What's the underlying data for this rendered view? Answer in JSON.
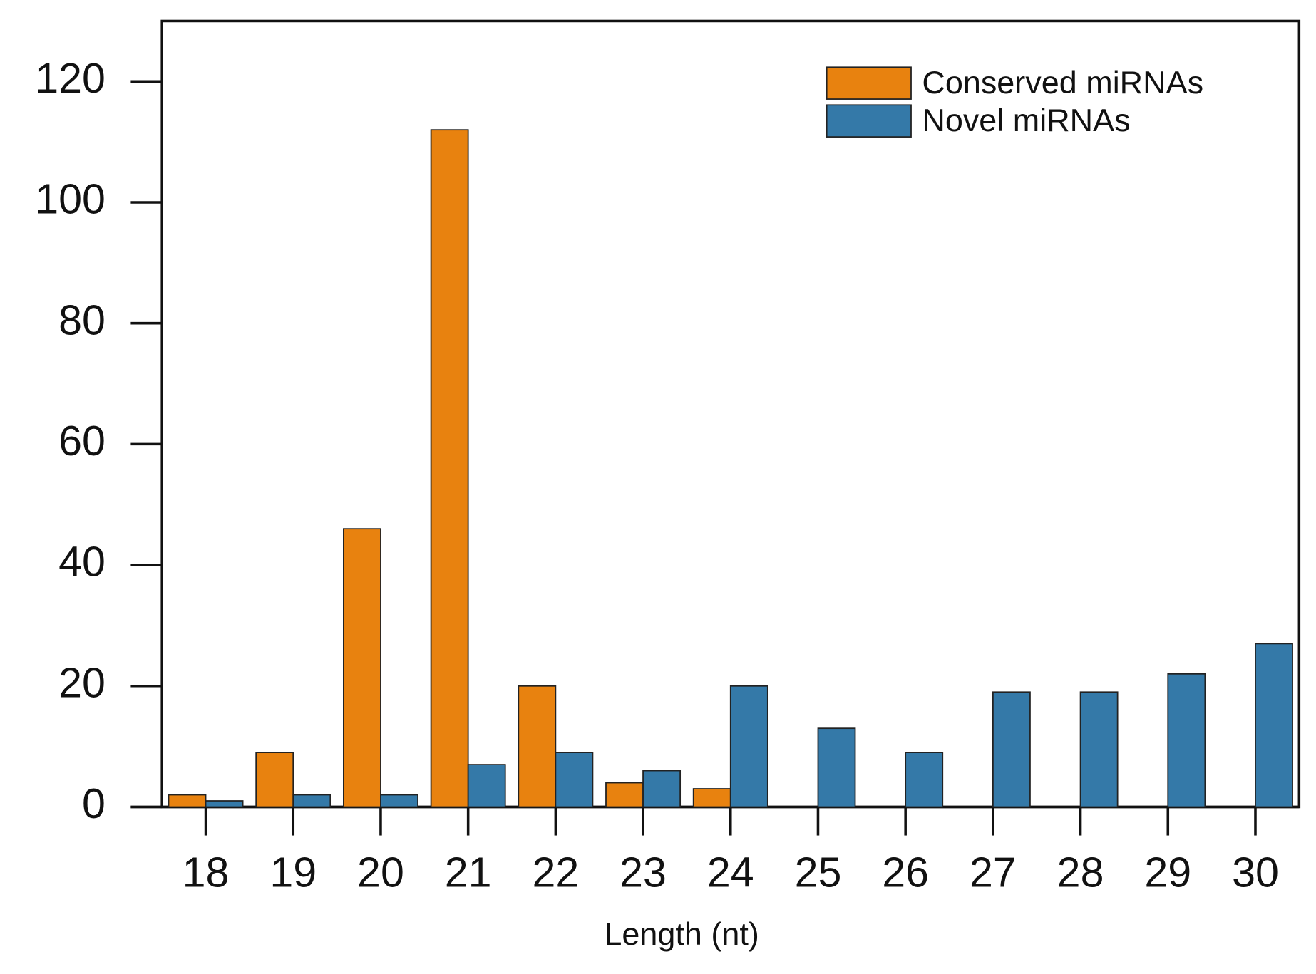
{
  "chart_data": {
    "type": "bar",
    "xlabel": "Length (nt)",
    "categories": [
      "18",
      "19",
      "20",
      "21",
      "22",
      "23",
      "24",
      "25",
      "26",
      "27",
      "28",
      "29",
      "30"
    ],
    "series": [
      {
        "name": "Conserved miRNAs",
        "color": "#e8820f",
        "values": [
          2,
          9,
          46,
          112,
          20,
          4,
          3,
          0,
          0,
          0,
          0,
          0,
          0
        ]
      },
      {
        "name": "Novel miRNAs",
        "color": "#3479a8",
        "values": [
          1,
          2,
          2,
          7,
          9,
          6,
          20,
          13,
          9,
          19,
          19,
          22,
          27
        ]
      }
    ],
    "ylim": [
      0,
      130
    ],
    "yticks": [
      0,
      20,
      40,
      60,
      80,
      100,
      120
    ],
    "legend": "upper right"
  }
}
